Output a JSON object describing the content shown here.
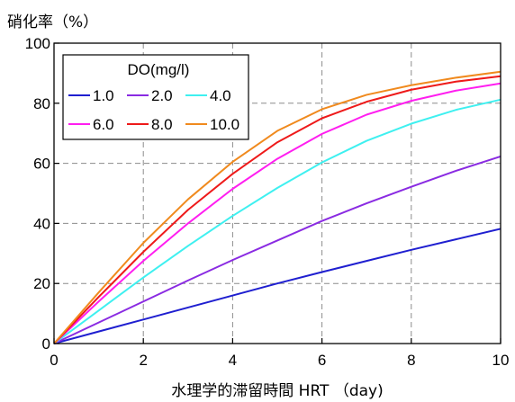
{
  "chart_data": {
    "type": "line",
    "ylabel": "硝化率（%）",
    "xlabel": "水理学的滞留時間 HRT （day)",
    "xlim": [
      0,
      10
    ],
    "ylim": [
      0,
      100
    ],
    "xticks": [
      0,
      2,
      4,
      6,
      8,
      10
    ],
    "yticks": [
      0,
      20,
      40,
      60,
      80,
      100
    ],
    "grid": true,
    "legend": {
      "title": "DO(mg/l)",
      "placement": "top-left",
      "columns": 3
    },
    "x": [
      0,
      1,
      2,
      3,
      4,
      5,
      6,
      7,
      8,
      9,
      10
    ],
    "series": [
      {
        "name": "1.0",
        "color": "#1f1fd0",
        "values": [
          0,
          4.0,
          8.0,
          12.0,
          16.0,
          20.0,
          23.8,
          27.5,
          31.2,
          34.7,
          38.2
        ]
      },
      {
        "name": "2.0",
        "color": "#8a2be2",
        "values": [
          0,
          7.0,
          14.0,
          21.0,
          27.8,
          34.3,
          40.8,
          46.7,
          52.2,
          57.5,
          62.3
        ]
      },
      {
        "name": "4.0",
        "color": "#3ff0f0",
        "values": [
          0,
          11.0,
          22.0,
          32.5,
          42.5,
          51.8,
          60.3,
          67.5,
          73.2,
          77.8,
          81.2
        ]
      },
      {
        "name": "6.0",
        "color": "#ff1ef0",
        "values": [
          0,
          14.0,
          27.5,
          40.0,
          51.5,
          61.5,
          69.8,
          76.2,
          80.8,
          84.2,
          86.6
        ]
      },
      {
        "name": "8.0",
        "color": "#ee1a1a",
        "values": [
          0,
          15.5,
          30.5,
          44.5,
          56.5,
          67.0,
          75.0,
          80.5,
          84.5,
          87.2,
          89.0
        ]
      },
      {
        "name": "10.0",
        "color": "#f08a1e",
        "values": [
          0,
          17.0,
          33.5,
          48.0,
          60.5,
          70.8,
          78.0,
          82.8,
          86.0,
          88.5,
          90.5
        ]
      }
    ]
  }
}
